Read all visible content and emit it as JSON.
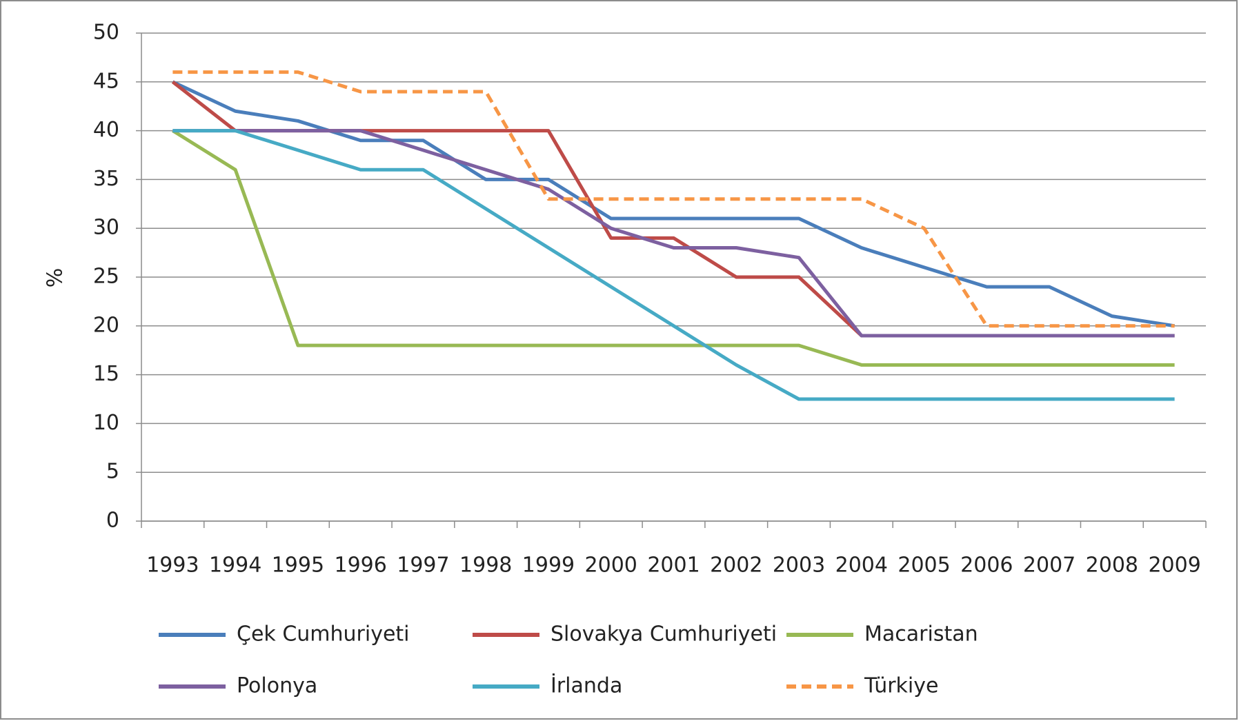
{
  "chart_data": {
    "type": "line",
    "y_label": "%",
    "categories": [
      "1993",
      "1994",
      "1995",
      "1996",
      "1997",
      "1998",
      "1999",
      "2000",
      "2001",
      "2002",
      "2003",
      "2004",
      "2005",
      "2006",
      "2007",
      "2008",
      "2009"
    ],
    "ylim": [
      0,
      50
    ],
    "yticks": [
      0,
      5,
      10,
      15,
      20,
      25,
      30,
      35,
      40,
      45,
      50
    ],
    "grid": true,
    "series": [
      {
        "name": "Çek Cumhuriyeti",
        "color": "#4a7ebb",
        "values": [
          45,
          42,
          41,
          39,
          39,
          35,
          35,
          31,
          31,
          31,
          31,
          28,
          26,
          24,
          24,
          21,
          20
        ]
      },
      {
        "name": "Slovakya Cumhuriyeti",
        "color": "#be4b48",
        "values": [
          45,
          40,
          40,
          40,
          40,
          40,
          40,
          29,
          29,
          25,
          25,
          19,
          19,
          19,
          19,
          19,
          19
        ]
      },
      {
        "name": "Macaristan",
        "color": "#98b954",
        "values": [
          40,
          36,
          18,
          18,
          18,
          18,
          18,
          18,
          18,
          18,
          18,
          16,
          16,
          16,
          16,
          16,
          16
        ]
      },
      {
        "name": "Polonya",
        "color": "#7d60a0",
        "values": [
          40,
          40,
          40,
          40,
          38,
          36,
          34,
          30,
          28,
          28,
          27,
          19,
          19,
          19,
          19,
          19,
          19
        ]
      },
      {
        "name": "İrlanda",
        "color": "#46aac5",
        "values": [
          40,
          40,
          38,
          36,
          36,
          32,
          28,
          24,
          20,
          16,
          12.5,
          12.5,
          12.5,
          12.5,
          12.5,
          12.5,
          12.5
        ]
      },
      {
        "name": "Türkiye",
        "color": "#f79646",
        "dashed": true,
        "values": [
          46,
          46,
          46,
          44,
          44,
          44,
          33,
          33,
          33,
          33,
          33,
          33,
          30,
          20,
          20,
          20,
          20
        ]
      }
    ]
  }
}
